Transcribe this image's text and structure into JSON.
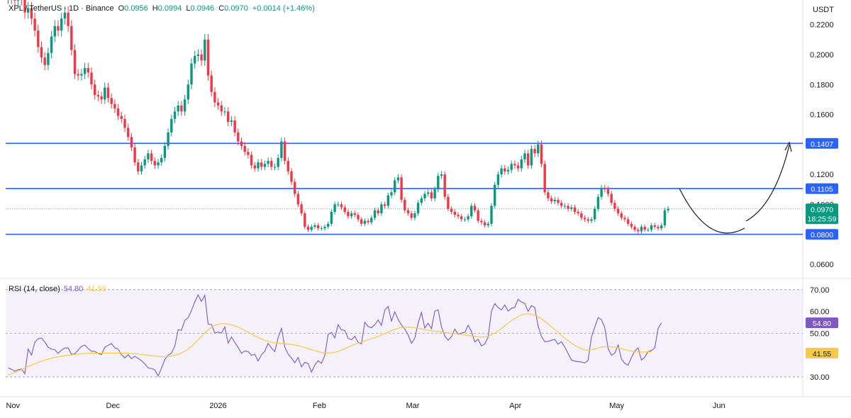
{
  "header": {
    "symbol": "XPL / TetherUS · 1D · Binance",
    "open_label": "O",
    "open": "0.0956",
    "high_label": "H",
    "high": "0.0994",
    "low_label": "L",
    "low": "0.0946",
    "close_label": "C",
    "close": "0.0970",
    "change": "+0.0014 (+1.46%)",
    "currency": "USDT"
  },
  "rsi_legend": {
    "label": "RSI (14, close)",
    "rsi": "54.80",
    "ma": "41.55"
  },
  "colors": {
    "up": "#089981",
    "down": "#f23645",
    "level_line": "#2962ff",
    "rsi_line": "#7e57c2",
    "rsi_ma": "#f7c948",
    "rsi_band": "#ede7f6",
    "price_tag": "#089981",
    "level_tag": "#2962ff",
    "ma_tag": "#f7c948"
  },
  "chart_data": [
    {
      "type": "candlestick",
      "title": "XPL / TetherUS · 1D · Binance",
      "ylabel": "USDT",
      "ylim": [
        0.05,
        0.23
      ],
      "y_ticks": [
        "0.0600",
        "0.1000",
        "0.1200",
        "0.1600",
        "0.1800",
        "0.2000",
        "0.2200"
      ],
      "x_labels": [
        "Nov",
        "Dec",
        "2026",
        "Feb",
        "Mar",
        "Apr",
        "May",
        "Jun"
      ],
      "x_label_days": [
        0,
        30,
        61,
        92,
        120,
        151,
        181,
        212
      ],
      "horizontal_levels": [
        {
          "label": "0.1407",
          "value": 0.1407
        },
        {
          "label": "0.1105",
          "value": 0.1105
        },
        {
          "label": "0.0800",
          "value": 0.08
        }
      ],
      "last_price": {
        "label": "0.0970",
        "value": 0.097,
        "countdown": "18:25:59"
      },
      "annotations": [
        "rounded-bottom arc",
        "upward arrow to 0.1407"
      ],
      "closes": [
        0.238,
        0.244,
        0.236,
        0.242,
        0.237,
        0.228,
        0.231,
        0.224,
        0.216,
        0.205,
        0.198,
        0.193,
        0.201,
        0.212,
        0.219,
        0.216,
        0.224,
        0.228,
        0.219,
        0.203,
        0.187,
        0.186,
        0.187,
        0.191,
        0.188,
        0.18,
        0.173,
        0.172,
        0.17,
        0.178,
        0.171,
        0.167,
        0.164,
        0.159,
        0.157,
        0.151,
        0.145,
        0.138,
        0.128,
        0.122,
        0.126,
        0.13,
        0.134,
        0.129,
        0.126,
        0.128,
        0.131,
        0.139,
        0.148,
        0.157,
        0.162,
        0.166,
        0.162,
        0.17,
        0.18,
        0.194,
        0.199,
        0.2,
        0.196,
        0.21,
        0.186,
        0.175,
        0.168,
        0.166,
        0.162,
        0.162,
        0.155,
        0.156,
        0.148,
        0.142,
        0.139,
        0.135,
        0.133,
        0.126,
        0.124,
        0.128,
        0.125,
        0.127,
        0.129,
        0.125,
        0.125,
        0.131,
        0.142,
        0.129,
        0.122,
        0.115,
        0.107,
        0.1,
        0.094,
        0.085,
        0.083,
        0.085,
        0.086,
        0.084,
        0.084,
        0.085,
        0.087,
        0.095,
        0.1,
        0.1,
        0.098,
        0.095,
        0.092,
        0.094,
        0.093,
        0.09,
        0.087,
        0.089,
        0.088,
        0.091,
        0.096,
        0.094,
        0.1,
        0.099,
        0.106,
        0.108,
        0.116,
        0.118,
        0.103,
        0.096,
        0.094,
        0.091,
        0.094,
        0.101,
        0.104,
        0.107,
        0.108,
        0.104,
        0.11,
        0.119,
        0.12,
        0.105,
        0.097,
        0.095,
        0.093,
        0.092,
        0.09,
        0.09,
        0.092,
        0.099,
        0.096,
        0.089,
        0.088,
        0.086,
        0.087,
        0.099,
        0.113,
        0.12,
        0.124,
        0.122,
        0.123,
        0.127,
        0.126,
        0.124,
        0.13,
        0.134,
        0.126,
        0.137,
        0.134,
        0.14,
        0.127,
        0.108,
        0.104,
        0.102,
        0.103,
        0.101,
        0.099,
        0.099,
        0.097,
        0.098,
        0.095,
        0.094,
        0.091,
        0.09,
        0.089,
        0.09,
        0.097,
        0.105,
        0.111,
        0.11,
        0.107,
        0.101,
        0.097,
        0.094,
        0.091,
        0.09,
        0.087,
        0.085,
        0.083,
        0.082,
        0.085,
        0.083,
        0.083,
        0.086,
        0.085,
        0.084,
        0.086,
        0.096,
        0.097
      ]
    },
    {
      "type": "line",
      "title": "RSI (14, close)",
      "ylim": [
        25,
        75
      ],
      "y_ticks": [
        "30.00",
        "40.00",
        "50.00",
        "60.00",
        "70.00"
      ],
      "bands": [
        30,
        70
      ],
      "last_values": {
        "rsi": "54.80",
        "ma": "41.55"
      },
      "series": [
        {
          "name": "RSI",
          "values": [
            34.2,
            33.5,
            32.6,
            33.3,
            33.6,
            31.5,
            42.8,
            40.0,
            45.9,
            47.5,
            47.8,
            46.0,
            43.6,
            42.7,
            42.5,
            40.8,
            42.3,
            43.2,
            43.3,
            40.3,
            40.6,
            42.3,
            44.0,
            44.6,
            43.0,
            41.8,
            41.7,
            40.8,
            40.2,
            43.6,
            44.5,
            45.3,
            43.3,
            42.7,
            40.2,
            38.7,
            40.2,
            38.4,
            39.4,
            38.5,
            37.4,
            36.0,
            34.1,
            33.9,
            33.2,
            30.4,
            34.0,
            38.0,
            40.0,
            40.9,
            44.1,
            51.6,
            51.4,
            55.9,
            57.1,
            60.4,
            64.4,
            67.6,
            64.6,
            67.4,
            54.2,
            54.0,
            50.1,
            50.6,
            50.1,
            52.9,
            45.5,
            48.3,
            45.8,
            43.5,
            40.8,
            41.9,
            41.6,
            39.9,
            40.4,
            37.3,
            40.1,
            41.8,
            45.4,
            43.2,
            41.6,
            48.0,
            52.3,
            43.7,
            40.5,
            38.6,
            36.5,
            38.9,
            34.6,
            36.7,
            36.1,
            32.2,
            35.4,
            37.4,
            36.2,
            39.8,
            49.5,
            50.4,
            47.9,
            53.9,
            51.6,
            51.3,
            47.7,
            47.0,
            48.6,
            45.8,
            45.1,
            55.1,
            53.1,
            52.5,
            53.9,
            56.1,
            53.6,
            60.6,
            62.3,
            55.6,
            59.8,
            56.3,
            53.8,
            51.9,
            49.2,
            45.4,
            47.7,
            54.6,
            59.5,
            52.4,
            54.6,
            52.1,
            60.1,
            60.7,
            53.0,
            48.7,
            46.8,
            48.4,
            51.9,
            49.5,
            50.1,
            50.4,
            53.7,
            50.8,
            46.0,
            47.2,
            44.2,
            45.1,
            48.2,
            60.1,
            63.6,
            61.8,
            60.7,
            63.0,
            60.2,
            61.4,
            61.9,
            65.6,
            64.3,
            63.7,
            60.0,
            62.7,
            61.8,
            53.3,
            48.6,
            46.1,
            46.3,
            46.8,
            47.2,
            45.0,
            46.1,
            43.7,
            40.7,
            37.8,
            37.2,
            37.0,
            36.8,
            36.4,
            37.6,
            48.3,
            52.8,
            57.2,
            56.2,
            52.6,
            43.0,
            39.9,
            40.9,
            44.6,
            38.2,
            36.2,
            35.4,
            38.9,
            41.9,
            43.3,
            37.7,
            39.1,
            41.6,
            42.1,
            43.3,
            52.2,
            54.8
          ]
        },
        {
          "name": "MA",
          "values": [
            31.0,
            31.4,
            32.0,
            32.7,
            33.4,
            34.1,
            34.8,
            35.4,
            36.1,
            36.6,
            37.2,
            37.7,
            38.1,
            38.5,
            38.9,
            39.2,
            39.4,
            39.7,
            39.9,
            40.1,
            40.3,
            40.4,
            40.6,
            40.7,
            40.8,
            40.9,
            40.9,
            40.9,
            40.9,
            40.9,
            40.9,
            40.9,
            40.9,
            40.9,
            40.9,
            40.9,
            40.8,
            40.7,
            40.6,
            40.5,
            40.3,
            40.1,
            39.9,
            39.7,
            39.5,
            39.4,
            39.3,
            39.3,
            39.4,
            39.6,
            39.9,
            40.4,
            41.0,
            41.8,
            42.8,
            44.0,
            45.4,
            47.0,
            48.6,
            50.2,
            51.6,
            52.8,
            53.6,
            54.1,
            54.4,
            54.4,
            54.2,
            53.9,
            53.4,
            52.8,
            52.1,
            51.3,
            50.5,
            49.7,
            48.9,
            48.1,
            47.4,
            46.8,
            46.3,
            45.9,
            45.6,
            45.4,
            45.3,
            45.2,
            45.1,
            44.9,
            44.6,
            44.3,
            43.9,
            43.5,
            43.0,
            42.5,
            42.0,
            41.6,
            41.2,
            41.0,
            40.9,
            41.0,
            41.3,
            41.7,
            42.3,
            42.9,
            43.6,
            44.3,
            44.9,
            45.5,
            46.0,
            46.5,
            47.0,
            47.5,
            48.0,
            48.6,
            49.2,
            49.9,
            50.6,
            51.2,
            51.8,
            52.3,
            52.6,
            52.8,
            52.8,
            52.7,
            52.5,
            52.3,
            52.0,
            51.7,
            51.4,
            51.2,
            51.0,
            50.8,
            50.6,
            50.4,
            50.2,
            50.0,
            49.8,
            49.6,
            49.4,
            49.2,
            49.0,
            48.8,
            48.6,
            48.4,
            48.2,
            48.3,
            48.7,
            49.3,
            50.1,
            51.1,
            52.2,
            53.4,
            54.6,
            55.7,
            56.8,
            57.7,
            58.4,
            58.8,
            58.9,
            58.7,
            58.2,
            57.5,
            56.6,
            55.5,
            54.3,
            53.0,
            51.7,
            50.4,
            49.1,
            47.8,
            46.6,
            45.5,
            44.5,
            43.6,
            42.9,
            42.4,
            42.3,
            42.4,
            42.8,
            43.2,
            43.6,
            43.8,
            43.9,
            43.8,
            43.6,
            43.3,
            42.9,
            42.5,
            42.1,
            41.8,
            41.6,
            41.4,
            41.4,
            41.4,
            41.5,
            41.5
          ]
        }
      ]
    }
  ]
}
